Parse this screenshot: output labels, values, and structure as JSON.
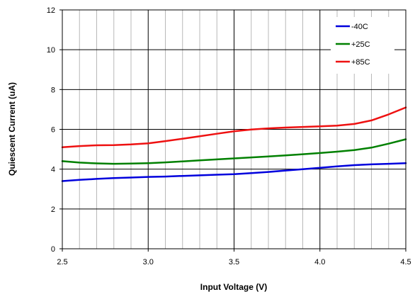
{
  "chart_data": {
    "type": "line",
    "title": "",
    "xlabel": "Input Voltage (V)",
    "ylabel": "Quiescent Current (uA)",
    "xlim": [
      2.5,
      4.5
    ],
    "ylim": [
      0,
      12
    ],
    "x_ticks": [
      2.5,
      3.0,
      3.5,
      4.0,
      4.5
    ],
    "x_tick_labels": [
      "2.5",
      "3.0",
      "3.5",
      "4.0",
      "4.5"
    ],
    "y_ticks": [
      0,
      2,
      4,
      6,
      8,
      10,
      12
    ],
    "y_tick_labels": [
      "0",
      "2",
      "4",
      "6",
      "8",
      "10",
      "12"
    ],
    "x_minor_step": 0.1,
    "grid": true,
    "legend_position": "top-right",
    "series": [
      {
        "name": "-40C",
        "color": "#0000dd",
        "x": [
          2.5,
          2.6,
          2.7,
          2.8,
          2.9,
          3.0,
          3.1,
          3.2,
          3.3,
          3.4,
          3.5,
          3.6,
          3.7,
          3.8,
          3.9,
          4.0,
          4.1,
          4.2,
          4.3,
          4.4,
          4.5
        ],
        "y": [
          3.4,
          3.46,
          3.51,
          3.55,
          3.58,
          3.61,
          3.63,
          3.66,
          3.69,
          3.72,
          3.75,
          3.8,
          3.86,
          3.93,
          4.0,
          4.07,
          4.14,
          4.2,
          4.24,
          4.27,
          4.3
        ]
      },
      {
        "name": "+25C",
        "color": "#008000",
        "x": [
          2.5,
          2.6,
          2.7,
          2.8,
          2.9,
          3.0,
          3.1,
          3.2,
          3.3,
          3.4,
          3.5,
          3.6,
          3.7,
          3.8,
          3.9,
          4.0,
          4.1,
          4.2,
          4.3,
          4.4,
          4.5
        ],
        "y": [
          4.4,
          4.33,
          4.29,
          4.27,
          4.28,
          4.3,
          4.34,
          4.39,
          4.44,
          4.49,
          4.54,
          4.59,
          4.64,
          4.69,
          4.75,
          4.81,
          4.88,
          4.96,
          5.08,
          5.28,
          5.5
        ]
      },
      {
        "name": "+85C",
        "color": "#ee1111",
        "x": [
          2.5,
          2.6,
          2.7,
          2.8,
          2.9,
          3.0,
          3.1,
          3.2,
          3.3,
          3.4,
          3.5,
          3.6,
          3.7,
          3.8,
          3.9,
          4.0,
          4.1,
          4.2,
          4.3,
          4.4,
          4.5
        ],
        "y": [
          5.1,
          5.16,
          5.2,
          5.21,
          5.24,
          5.3,
          5.41,
          5.53,
          5.65,
          5.78,
          5.9,
          5.99,
          6.05,
          6.09,
          6.12,
          6.15,
          6.19,
          6.27,
          6.45,
          6.75,
          7.1
        ]
      }
    ]
  }
}
